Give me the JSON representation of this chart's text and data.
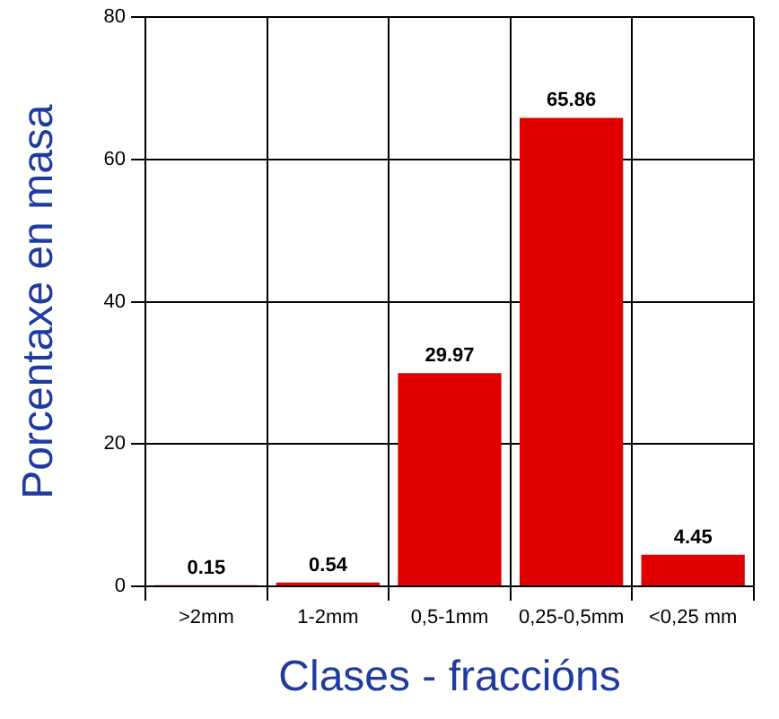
{
  "chart_data": {
    "type": "bar",
    "xlabel": "Clases - fraccións",
    "ylabel": "Porcentaxe en masa",
    "categories": [
      ">2mm",
      "1-2mm",
      "0,5-1mm",
      "0,25-0,5mm",
      "<0,25 mm"
    ],
    "values": [
      0.15,
      0.54,
      29.97,
      65.86,
      4.45
    ],
    "color": "#e00000",
    "ylim": [
      0,
      80
    ],
    "yticks": [
      0,
      20,
      40,
      60,
      80
    ],
    "grid": true,
    "data_labels": true
  }
}
